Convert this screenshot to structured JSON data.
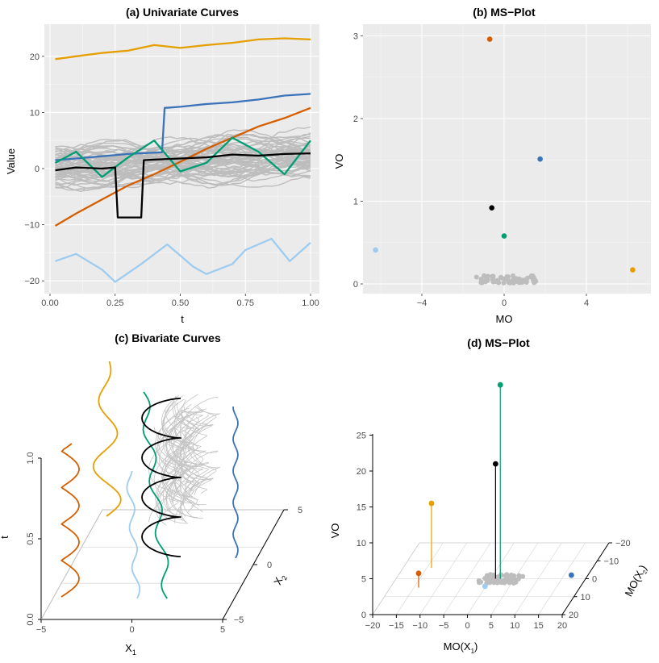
{
  "colors": {
    "orange": "#D55E00",
    "gold": "#E69F00",
    "blue": "#3B73B9",
    "green": "#009E73",
    "black": "#000000",
    "lightblue": "#9DCCF0",
    "gray": "#BDBDBD",
    "panel": "#EBEBEB"
  },
  "chart_data": [
    {
      "type": "line",
      "title": "(a) Univariate Curves",
      "xlabel": "t",
      "ylabel": "Value",
      "xlim": [
        0,
        1
      ],
      "ylim": [
        -22,
        25
      ],
      "xticks": [
        0,
        0.25,
        0.5,
        0.75,
        1
      ],
      "xtick_labels": [
        "0.00",
        "0.25",
        "0.50",
        "0.75",
        "1.00"
      ],
      "yticks": [
        -20,
        -10,
        0,
        10,
        20
      ],
      "ytick_labels": [
        "−20",
        "−10",
        "0",
        "10",
        "20"
      ],
      "n_background_curves": 60,
      "background_range": [
        -3,
        6
      ],
      "series": [
        {
          "name": "gold",
          "desc": "shift outlier",
          "x": [
            0.02,
            0.1,
            0.2,
            0.3,
            0.4,
            0.5,
            0.6,
            0.7,
            0.8,
            0.9,
            1.0
          ],
          "y": [
            19.5,
            20,
            20.6,
            21,
            22,
            21.5,
            22,
            22.4,
            23,
            23.2,
            23
          ]
        },
        {
          "name": "blue",
          "desc": "partial shift outlier",
          "x": [
            0.02,
            0.1,
            0.2,
            0.3,
            0.43,
            0.44,
            0.5,
            0.6,
            0.7,
            0.8,
            0.9,
            1.0
          ],
          "y": [
            1.5,
            1.8,
            2.2,
            2.6,
            2.9,
            10.8,
            11,
            11.5,
            11.8,
            12.3,
            13,
            13.3
          ]
        },
        {
          "name": "orange",
          "desc": "trend outlier",
          "x": [
            0.02,
            0.1,
            0.2,
            0.3,
            0.4,
            0.5,
            0.6,
            0.7,
            0.8,
            0.9,
            1.0
          ],
          "y": [
            -10.2,
            -8,
            -5.5,
            -3,
            -1,
            1.2,
            3.5,
            5.5,
            7.5,
            9,
            10.8
          ]
        },
        {
          "name": "green",
          "desc": "frequency outlier",
          "x": [
            0.02,
            0.1,
            0.2,
            0.3,
            0.4,
            0.5,
            0.6,
            0.7,
            0.8,
            0.9,
            1.0
          ],
          "y": [
            1,
            3,
            -1.5,
            2,
            5,
            -0.5,
            1,
            5.5,
            3,
            -1,
            5
          ]
        },
        {
          "name": "black",
          "desc": "isolated outlier",
          "x": [
            0.02,
            0.1,
            0.2,
            0.25,
            0.26,
            0.35,
            0.36,
            0.4,
            0.5,
            0.6,
            0.7,
            0.8,
            0.9,
            1.0
          ],
          "y": [
            -0.3,
            0.2,
            0,
            0.2,
            -8.7,
            -8.7,
            1.5,
            1.6,
            1.8,
            2,
            2.5,
            2.3,
            2.6,
            2.7
          ]
        },
        {
          "name": "lightblue",
          "desc": "amplitude/shift outlier",
          "x": [
            0.02,
            0.1,
            0.2,
            0.25,
            0.35,
            0.45,
            0.55,
            0.6,
            0.7,
            0.75,
            0.85,
            0.92,
            1.0
          ],
          "y": [
            -16.5,
            -15.2,
            -18,
            -20.2,
            -17,
            -13.5,
            -17.5,
            -18.8,
            -17,
            -14.5,
            -12.5,
            -16.5,
            -13.2
          ]
        }
      ]
    },
    {
      "type": "scatter",
      "title": "(b) MS−Plot",
      "xlabel": "MO",
      "ylabel": "VO",
      "xlim": [
        -6.5,
        6.5
      ],
      "ylim": [
        -0.05,
        3.05
      ],
      "xticks": [
        -4,
        0,
        4
      ],
      "xtick_labels": [
        "−4",
        "0",
        "4"
      ],
      "yticks": [
        0,
        1,
        2,
        3
      ],
      "ytick_labels": [
        "0",
        "1",
        "2",
        "3"
      ],
      "gray_cluster": {
        "mo_range": [
          -1.4,
          1.6
        ],
        "vo_range": [
          0.01,
          0.1
        ],
        "n": 60
      },
      "points": [
        {
          "name": "orange",
          "mo": -0.7,
          "vo": 2.96
        },
        {
          "name": "blue",
          "mo": 1.75,
          "vo": 1.51
        },
        {
          "name": "black",
          "mo": -0.6,
          "vo": 0.92
        },
        {
          "name": "green",
          "mo": 0.0,
          "vo": 0.58
        },
        {
          "name": "lightblue",
          "mo": -6.25,
          "vo": 0.41
        },
        {
          "name": "gold",
          "mo": 6.25,
          "vo": 0.17
        }
      ]
    },
    {
      "type": "line",
      "title": "(c) Bivariate Curves",
      "xlabel": "X",
      "xlabel_sub": "1",
      "ylabel": "t",
      "zlabel": "X",
      "zlabel_sub": "2",
      "x_ticks": [
        "−5",
        "0",
        "5"
      ],
      "t_ticks": [
        "0.0",
        "0.5",
        "1.0"
      ],
      "x2_ticks": [
        "−5",
        "0",
        "5"
      ],
      "n_background_curves": 40,
      "series": [
        {
          "name": "orange",
          "desc": "oscillating curve at X1 about -3.5"
        },
        {
          "name": "gold",
          "desc": "wavy curve at X1 about -1.5"
        },
        {
          "name": "lightblue",
          "desc": "near-straight curve at X1 about 0"
        },
        {
          "name": "black",
          "desc": "helical curve around the bulk"
        },
        {
          "name": "green",
          "desc": "shifted curve through the bulk"
        },
        {
          "name": "blue",
          "desc": "curve far at X1 about 5"
        }
      ]
    },
    {
      "type": "scatter",
      "title": "(d) MS−Plot",
      "xlabel": "MO(X",
      "xlabel_sub": "1",
      "ylabel": "VO",
      "zlabel": "MO(X",
      "zlabel_sub": "2",
      "x_ticks": [
        "−20",
        "−15",
        "−10",
        "−5",
        "0",
        "5",
        "10",
        "15",
        "20"
      ],
      "vo_ticks": [
        "0",
        "5",
        "10",
        "15",
        "20",
        "25"
      ],
      "z_ticks": [
        "−20",
        "−10",
        "0",
        "10",
        "20"
      ],
      "points": [
        {
          "name": "green",
          "vo": 27,
          "mo1": 2,
          "mo2": 0
        },
        {
          "name": "black",
          "vo": 16,
          "mo1": 1,
          "mo2": 0
        },
        {
          "name": "gold",
          "vo": 9,
          "mo1": -14,
          "mo2": 6
        },
        {
          "name": "orange",
          "vo": 2,
          "mo1": -14,
          "mo2": -5
        },
        {
          "name": "blue",
          "vo": 0.5,
          "mo1": 17,
          "mo2": 0
        },
        {
          "name": "lightblue",
          "vo": 0.2,
          "mo1": 0,
          "mo2": -5
        }
      ]
    }
  ]
}
